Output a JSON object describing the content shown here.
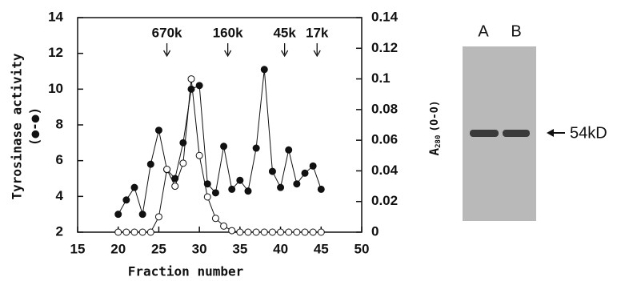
{
  "chart_data": {
    "type": "line",
    "x_label": "Fraction number",
    "y_label": "Tyrosinase activity",
    "y_label_symbol": "(●-●)",
    "y2_label": "A",
    "y2_label_sub": "280",
    "y2_label_symbol": "(O-O)",
    "xlim": [
      15,
      50
    ],
    "xticks": [
      15,
      20,
      25,
      30,
      35,
      40,
      45,
      50
    ],
    "ylim": [
      2,
      14
    ],
    "yticks": [
      2,
      4,
      6,
      8,
      10,
      12,
      14
    ],
    "y2lim": [
      0,
      0.14
    ],
    "y2ticks": [
      0,
      0.02,
      0.04,
      0.06,
      0.08,
      0.1,
      0.12,
      0.14
    ],
    "grid": false,
    "annotations": [
      {
        "text": "670k",
        "x": 26
      },
      {
        "text": "160k",
        "x": 33.5
      },
      {
        "text": "45k",
        "x": 40.5
      },
      {
        "text": "17k",
        "x": 44.5
      }
    ],
    "series": [
      {
        "marker": "filled",
        "color": "#111111",
        "x": [
          20,
          21,
          22,
          23,
          24,
          25,
          26,
          27,
          28,
          29,
          30,
          31,
          32,
          33,
          34,
          35,
          36,
          37,
          38,
          39,
          40,
          41,
          42,
          43,
          44,
          45
        ],
        "values": [
          3,
          3.8,
          4.5,
          3,
          5.8,
          7.7,
          5.5,
          5,
          7,
          10,
          10.2,
          4.7,
          4.2,
          6.8,
          4.4,
          4.9,
          4.3,
          6.7,
          11.1,
          5.4,
          4.5,
          6.6,
          4.7,
          5.3,
          5.7,
          4.4
        ]
      },
      {
        "marker": "open",
        "color": "#111111",
        "axis": "y2",
        "x": [
          20,
          21,
          22,
          23,
          24,
          25,
          26,
          27,
          28,
          29,
          30,
          31,
          32,
          33,
          34,
          35,
          36,
          37,
          38,
          39,
          40,
          41,
          42,
          43,
          44,
          45
        ],
        "values": [
          0,
          0,
          0,
          0,
          0,
          0.01,
          0.041,
          0.03,
          0.045,
          0.1,
          0.05,
          0.023,
          0.009,
          0.004,
          0.001,
          0,
          0,
          0,
          0,
          0,
          0,
          0,
          0,
          0,
          0,
          0
        ]
      }
    ]
  },
  "gel": {
    "lanes": [
      "A",
      "B"
    ],
    "marker": "54kD"
  }
}
